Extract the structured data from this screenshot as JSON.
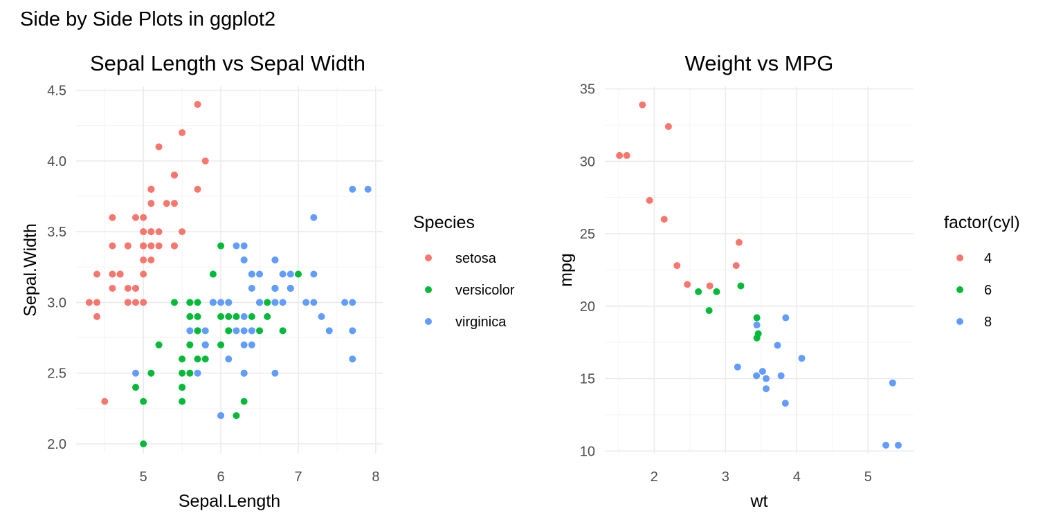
{
  "title": "Side by Side Plots in ggplot2",
  "colors": {
    "red": "#F8766D",
    "green": "#00BA38",
    "blue": "#619CFF"
  },
  "chart_data": [
    {
      "type": "scatter",
      "title": "Sepal Length vs Sepal Width",
      "xlabel": "Sepal.Length",
      "ylabel": "Sepal.Width",
      "xlim": [
        4.3,
        7.9
      ],
      "ylim": [
        2.0,
        4.4
      ],
      "xticks": [
        5,
        6,
        7,
        8
      ],
      "yticks": [
        2.0,
        2.5,
        3.0,
        3.5,
        4.0,
        4.5
      ],
      "xtick_labels": [
        "5",
        "6",
        "7",
        "8"
      ],
      "ytick_labels": [
        "2.0",
        "2.5",
        "3.0",
        "3.5",
        "4.0",
        "4.5"
      ],
      "grid": true,
      "legend": {
        "title": "Species",
        "placement": "right"
      },
      "series": [
        {
          "name": "setosa",
          "color": "#F8766D",
          "x": [
            5.1,
            4.9,
            4.7,
            4.6,
            5.0,
            5.4,
            4.6,
            5.0,
            4.4,
            4.9,
            5.4,
            4.8,
            4.8,
            4.3,
            5.8,
            5.7,
            5.4,
            5.1,
            5.7,
            5.1,
            5.4,
            5.1,
            4.6,
            5.1,
            4.8,
            5.0,
            5.0,
            5.2,
            5.2,
            4.7,
            4.8,
            5.4,
            5.2,
            5.5,
            4.9,
            5.0,
            5.5,
            4.9,
            4.4,
            5.1,
            5.0,
            4.5,
            4.4,
            5.0,
            5.1,
            4.8,
            5.1,
            4.6,
            5.3,
            5.0
          ],
          "y": [
            3.5,
            3.0,
            3.2,
            3.1,
            3.6,
            3.9,
            3.4,
            3.4,
            2.9,
            3.1,
            3.7,
            3.4,
            3.0,
            3.0,
            4.0,
            4.4,
            3.9,
            3.5,
            3.8,
            3.8,
            3.4,
            3.7,
            3.6,
            3.3,
            3.4,
            3.0,
            3.4,
            3.5,
            3.4,
            3.2,
            3.1,
            3.4,
            4.1,
            4.2,
            3.1,
            3.2,
            3.5,
            3.6,
            3.0,
            3.4,
            3.5,
            2.3,
            3.2,
            3.5,
            3.8,
            3.0,
            3.8,
            3.2,
            3.7,
            3.3
          ]
        },
        {
          "name": "versicolor",
          "color": "#00BA38",
          "x": [
            7.0,
            6.4,
            6.9,
            5.5,
            6.5,
            5.7,
            6.3,
            4.9,
            6.6,
            5.2,
            5.0,
            5.9,
            6.0,
            6.1,
            5.6,
            6.7,
            5.6,
            5.8,
            6.2,
            5.6,
            5.9,
            6.1,
            6.3,
            6.1,
            6.4,
            6.6,
            6.8,
            6.7,
            6.0,
            5.7,
            5.5,
            5.5,
            5.8,
            6.0,
            5.4,
            6.0,
            6.7,
            6.3,
            5.6,
            5.5,
            5.5,
            6.1,
            5.8,
            5.0,
            5.6,
            5.7,
            5.7,
            6.2,
            5.1,
            5.7
          ],
          "y": [
            3.2,
            3.2,
            3.1,
            2.3,
            2.8,
            2.8,
            3.3,
            2.4,
            2.9,
            2.7,
            2.0,
            3.0,
            2.2,
            2.9,
            2.9,
            3.1,
            3.0,
            2.7,
            2.2,
            2.5,
            3.2,
            2.8,
            2.5,
            2.8,
            2.9,
            3.0,
            2.8,
            3.0,
            2.9,
            2.6,
            2.4,
            2.4,
            2.7,
            2.7,
            3.0,
            3.4,
            3.1,
            2.3,
            3.0,
            2.5,
            2.6,
            3.0,
            2.6,
            2.3,
            2.7,
            3.0,
            2.9,
            2.9,
            2.5,
            2.8
          ]
        },
        {
          "name": "virginica",
          "color": "#619CFF",
          "x": [
            6.3,
            5.8,
            7.1,
            6.3,
            6.5,
            7.6,
            4.9,
            7.3,
            6.7,
            7.2,
            6.5,
            6.4,
            6.8,
            5.7,
            5.8,
            6.4,
            6.5,
            7.7,
            7.7,
            6.0,
            6.9,
            5.6,
            7.7,
            6.3,
            6.7,
            7.2,
            6.2,
            6.1,
            6.4,
            7.2,
            7.4,
            7.9,
            6.4,
            6.3,
            6.1,
            7.7,
            6.3,
            6.4,
            6.0,
            6.9,
            6.7,
            6.9,
            5.8,
            6.8,
            6.7,
            6.7,
            6.3,
            6.5,
            6.2,
            5.9
          ],
          "y": [
            3.3,
            2.7,
            3.0,
            2.9,
            3.0,
            3.0,
            2.5,
            2.9,
            2.5,
            3.6,
            3.2,
            2.7,
            3.0,
            2.5,
            2.8,
            3.2,
            3.0,
            3.8,
            2.6,
            2.2,
            3.2,
            2.8,
            2.8,
            2.7,
            3.3,
            3.2,
            2.8,
            3.0,
            2.8,
            3.0,
            2.8,
            3.8,
            2.8,
            2.8,
            2.6,
            3.0,
            3.4,
            3.1,
            3.0,
            3.1,
            3.1,
            3.1,
            2.7,
            3.2,
            3.3,
            3.0,
            2.5,
            3.0,
            3.4,
            3.0
          ]
        }
      ]
    },
    {
      "type": "scatter",
      "title": "Weight vs MPG",
      "xlabel": "wt",
      "ylabel": "mpg",
      "xlim": [
        1.513,
        5.424
      ],
      "ylim": [
        10.4,
        33.9
      ],
      "xticks": [
        2,
        3,
        4,
        5
      ],
      "yticks": [
        10,
        15,
        20,
        25,
        30,
        35
      ],
      "xtick_labels": [
        "2",
        "3",
        "4",
        "5"
      ],
      "ytick_labels": [
        "10",
        "15",
        "20",
        "25",
        "30",
        "35"
      ],
      "grid": true,
      "legend": {
        "title": "factor(cyl)",
        "placement": "right"
      },
      "series": [
        {
          "name": "4",
          "color": "#F8766D",
          "x": [
            2.32,
            3.19,
            3.15,
            2.2,
            1.615,
            1.835,
            2.465,
            1.935,
            2.14,
            1.513,
            2.78
          ],
          "y": [
            22.8,
            24.4,
            22.8,
            32.4,
            30.4,
            33.9,
            21.5,
            27.3,
            26.0,
            30.4,
            21.4
          ]
        },
        {
          "name": "6",
          "color": "#00BA38",
          "x": [
            2.62,
            2.875,
            3.215,
            3.46,
            3.44,
            3.44,
            2.77
          ],
          "y": [
            21.0,
            21.0,
            21.4,
            18.1,
            19.2,
            17.8,
            19.7
          ]
        },
        {
          "name": "8",
          "color": "#619CFF",
          "x": [
            3.44,
            3.57,
            4.07,
            3.73,
            3.78,
            5.25,
            5.424,
            5.345,
            3.52,
            3.435,
            3.84,
            3.845,
            3.17,
            3.57
          ],
          "y": [
            18.7,
            14.3,
            16.4,
            17.3,
            15.2,
            10.4,
            10.4,
            14.7,
            15.5,
            15.2,
            13.3,
            19.2,
            15.8,
            15.0
          ]
        }
      ]
    }
  ]
}
